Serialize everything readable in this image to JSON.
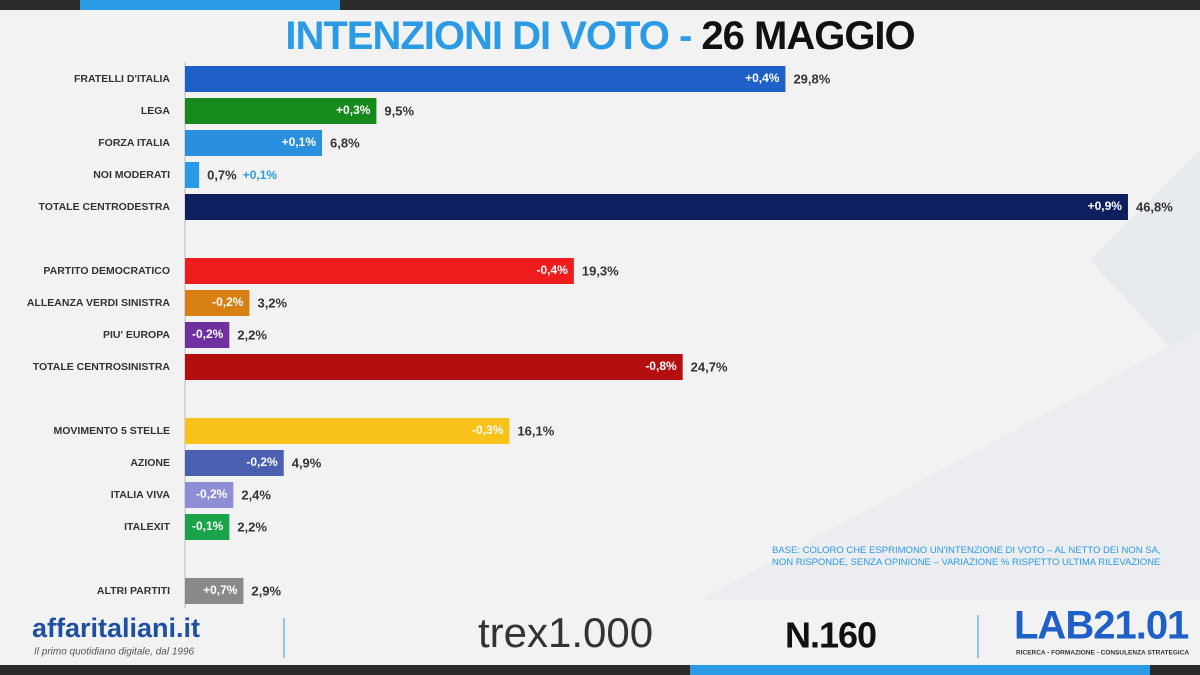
{
  "chart_data": {
    "type": "bar",
    "orientation": "horizontal",
    "title": "INTENZIONI DI VOTO -",
    "title_date": "26 MAGGIO",
    "categories": [
      "FRATELLI D'ITALIA",
      "LEGA",
      "FORZA ITALIA",
      "NOI MODERATI",
      "TOTALE CENTRODESTRA",
      "PARTITO DEMOCRATICO",
      "ALLEANZA VERDI SINISTRA",
      "PIU' EUROPA",
      "TOTALE CENTROSINISTRA",
      "MOVIMENTO 5 STELLE",
      "AZIONE",
      "ITALIA VIVA",
      "ITALEXIT",
      "ALTRI PARTITI"
    ],
    "values": [
      29.8,
      9.5,
      6.8,
      0.7,
      46.8,
      19.3,
      3.2,
      2.2,
      24.7,
      16.1,
      4.9,
      2.4,
      2.2,
      2.9
    ],
    "value_labels": [
      "29,8%",
      "9,5%",
      "6,8%",
      "0,7%",
      "46,8%",
      "19,3%",
      "3,2%",
      "2,2%",
      "24,7%",
      "16,1%",
      "4,9%",
      "2,4%",
      "2,2%",
      "2,9%"
    ],
    "changes": [
      0.4,
      0.3,
      0.1,
      0.1,
      0.9,
      -0.4,
      -0.2,
      -0.2,
      -0.8,
      -0.3,
      -0.2,
      -0.2,
      -0.1,
      0.7
    ],
    "change_labels": [
      "+0,4%",
      "+0,3%",
      "+0,1%",
      "+0,1%",
      "+0,9%",
      "-0,4%",
      "-0,2%",
      "-0,2%",
      "-0,8%",
      "-0,3%",
      "-0,2%",
      "-0,2%",
      "-0,1%",
      "+0,7%"
    ],
    "colors": [
      "#1f5fc8",
      "#178a1e",
      "#2b8fe0",
      "#2b9be6",
      "#0d1f5e",
      "#ee1c1c",
      "#d98014",
      "#7030a0",
      "#b50e0e",
      "#f9c21a",
      "#4a5fb0",
      "#8e8ed6",
      "#1aa34a",
      "#8a8a8a"
    ],
    "xlim": [
      0,
      47
    ],
    "note": "BASE: COLORO CHE ESPRIMONO UN'INTENZIONE DI VOTO – AL NETTO DEI NON SA, NON RISPONDE, SENZA OPINIONE – VARIAZIONE % RISPETTO ULTIMA RILEVAZIONE"
  },
  "footer": {
    "publisher": "affaritaliani.it",
    "publisher_tagline": "Il primo quotidiano digitale, dal 1996",
    "partner": "trex1.000",
    "number": "N.160",
    "lab": "LAB21.01",
    "lab_tagline": "RICERCA - FORMAZIONE - CONSULENZA STRATEGICA"
  }
}
